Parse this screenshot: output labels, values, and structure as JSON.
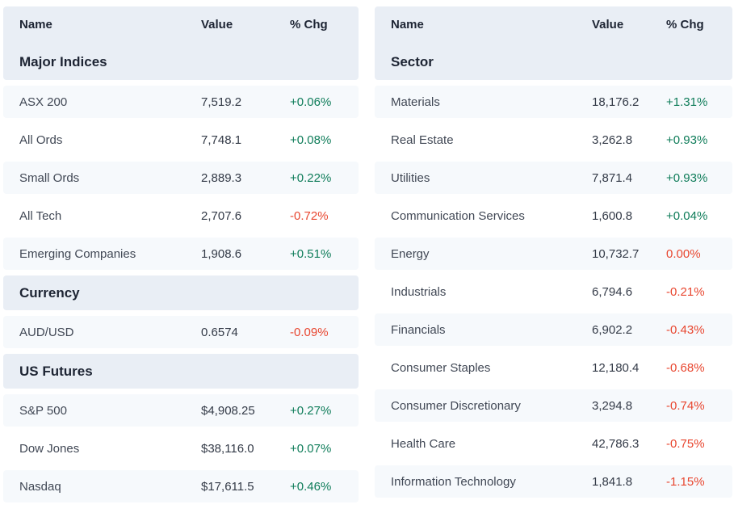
{
  "colors": {
    "up": "#0e7c59",
    "down": "#e8462f",
    "header_bg": "#e9eef5",
    "alt_row_bg": "#f6f9fc"
  },
  "left_table": {
    "columns": {
      "name": "Name",
      "value": "Value",
      "chg": "% Chg"
    },
    "sections": [
      {
        "title": "Major Indices",
        "rows": [
          {
            "name": "ASX 200",
            "value": "7,519.2",
            "chg": "+0.06%",
            "dir": "up"
          },
          {
            "name": "All Ords",
            "value": "7,748.1",
            "chg": "+0.08%",
            "dir": "up"
          },
          {
            "name": "Small Ords",
            "value": "2,889.3",
            "chg": "+0.22%",
            "dir": "up"
          },
          {
            "name": "All Tech",
            "value": "2,707.6",
            "chg": "-0.72%",
            "dir": "down"
          },
          {
            "name": "Emerging Companies",
            "value": "1,908.6",
            "chg": "+0.51%",
            "dir": "up"
          }
        ]
      },
      {
        "title": "Currency",
        "rows": [
          {
            "name": "AUD/USD",
            "value": "0.6574",
            "chg": "-0.09%",
            "dir": "down"
          }
        ]
      },
      {
        "title": "US Futures",
        "rows": [
          {
            "name": "S&P 500",
            "value": "$4,908.25",
            "chg": "+0.27%",
            "dir": "up"
          },
          {
            "name": "Dow Jones",
            "value": "$38,116.0",
            "chg": "+0.07%",
            "dir": "up"
          },
          {
            "name": "Nasdaq",
            "value": "$17,611.5",
            "chg": "+0.46%",
            "dir": "up"
          }
        ]
      }
    ]
  },
  "right_table": {
    "columns": {
      "name": "Name",
      "value": "Value",
      "chg": "% Chg"
    },
    "sections": [
      {
        "title": "Sector",
        "rows": [
          {
            "name": "Materials",
            "value": "18,176.2",
            "chg": "+1.31%",
            "dir": "up"
          },
          {
            "name": "Real Estate",
            "value": "3,262.8",
            "chg": "+0.93%",
            "dir": "up"
          },
          {
            "name": "Utilities",
            "value": "7,871.4",
            "chg": "+0.93%",
            "dir": "up"
          },
          {
            "name": "Communication Services",
            "value": "1,600.8",
            "chg": "+0.04%",
            "dir": "up"
          },
          {
            "name": "Energy",
            "value": "10,732.7",
            "chg": "0.00%",
            "dir": "down"
          },
          {
            "name": "Industrials",
            "value": "6,794.6",
            "chg": "-0.21%",
            "dir": "down"
          },
          {
            "name": "Financials",
            "value": "6,902.2",
            "chg": "-0.43%",
            "dir": "down"
          },
          {
            "name": "Consumer Staples",
            "value": "12,180.4",
            "chg": "-0.68%",
            "dir": "down"
          },
          {
            "name": "Consumer Discretionary",
            "value": "3,294.8",
            "chg": "-0.74%",
            "dir": "down"
          },
          {
            "name": "Health Care",
            "value": "42,786.3",
            "chg": "-0.75%",
            "dir": "down"
          },
          {
            "name": "Information Technology",
            "value": "1,841.8",
            "chg": "-1.15%",
            "dir": "down"
          }
        ]
      }
    ]
  }
}
